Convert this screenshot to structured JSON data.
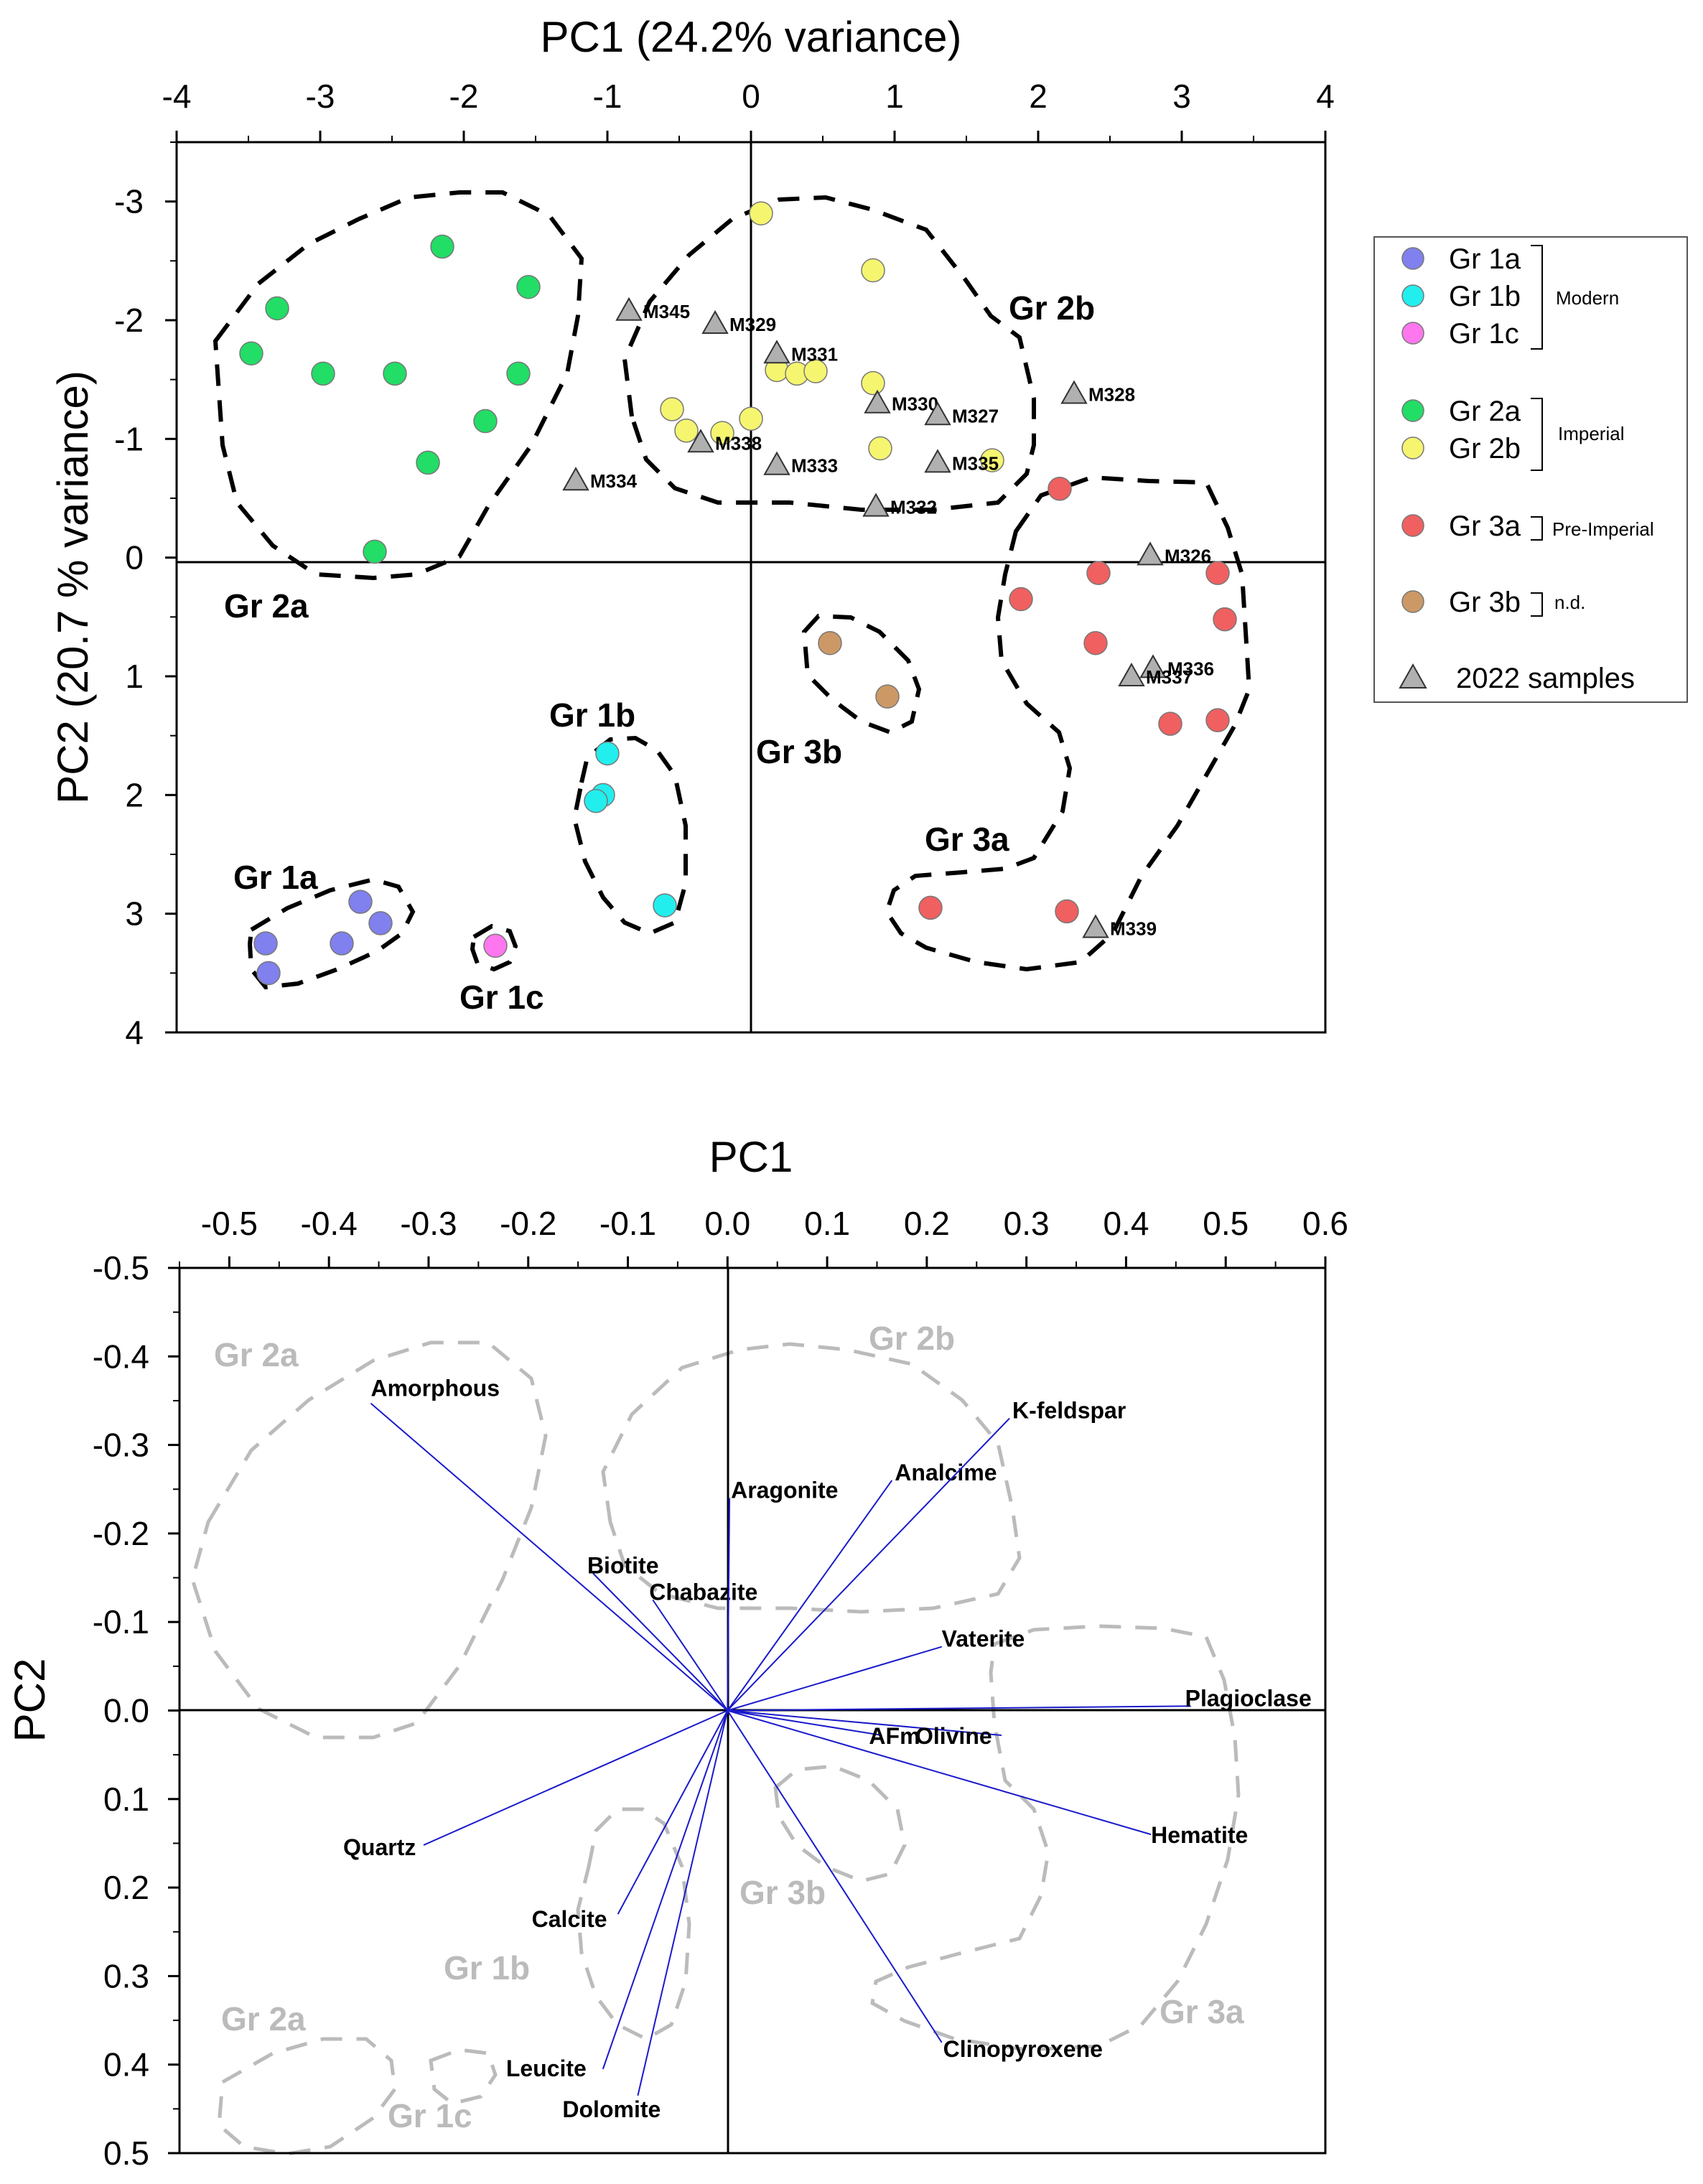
{
  "chart_data": [
    {
      "type": "scatter",
      "title": "",
      "xlabel": "PC1 (24.2% variance)",
      "ylabel": "PC2 (20.7 % variance)",
      "xlim": [
        -4,
        4
      ],
      "ylim": [
        -3.5,
        4
      ],
      "y_inverted": true,
      "x_ticks": [
        "-4",
        "-3",
        "-2",
        "-1",
        "0",
        "1",
        "2",
        "3",
        "4"
      ],
      "y_ticks": [
        "-3",
        "-2",
        "-1",
        "0",
        "1",
        "2",
        "3",
        "4"
      ],
      "series": [
        {
          "name": "Gr 1a",
          "color": "#8080ee",
          "points": [
            [
              -3.38,
              3.25
            ],
            [
              -3.36,
              3.5
            ],
            [
              -2.85,
              3.25
            ],
            [
              -2.72,
              2.9
            ],
            [
              -2.58,
              3.08
            ]
          ]
        },
        {
          "name": "Gr 1b",
          "color": "#22eeee",
          "points": [
            [
              -1.0,
              1.65
            ],
            [
              -1.03,
              2.0
            ],
            [
              -1.08,
              2.05
            ],
            [
              -0.6,
              2.93
            ]
          ]
        },
        {
          "name": "Gr 1c",
          "color": "#ff77ee",
          "points": [
            [
              -1.78,
              3.27
            ]
          ]
        },
        {
          "name": "Gr 2a",
          "color": "#22dd66",
          "points": [
            [
              -2.15,
              -2.62
            ],
            [
              -1.55,
              -2.28
            ],
            [
              -3.3,
              -2.1
            ],
            [
              -3.48,
              -1.72
            ],
            [
              -2.98,
              -1.55
            ],
            [
              -2.48,
              -1.55
            ],
            [
              -1.62,
              -1.55
            ],
            [
              -1.85,
              -1.15
            ],
            [
              -2.25,
              -0.8
            ],
            [
              -2.62,
              -0.05
            ]
          ]
        },
        {
          "name": "Gr 2b",
          "color": "#f5f570",
          "points": [
            [
              0.07,
              -2.9
            ],
            [
              0.85,
              -2.42
            ],
            [
              0.18,
              -1.58
            ],
            [
              0.32,
              -1.55
            ],
            [
              0.45,
              -1.57
            ],
            [
              0.85,
              -1.47
            ],
            [
              -0.55,
              -1.25
            ],
            [
              -0.45,
              -1.07
            ],
            [
              -0.2,
              -1.05
            ],
            [
              0.0,
              -1.17
            ],
            [
              0.9,
              -0.92
            ],
            [
              1.68,
              -0.82
            ]
          ]
        },
        {
          "name": "Gr 3a",
          "color": "#f06060",
          "points": [
            [
              2.15,
              -0.58
            ],
            [
              2.42,
              0.13
            ],
            [
              3.25,
              0.13
            ],
            [
              1.88,
              0.35
            ],
            [
              3.3,
              0.52
            ],
            [
              2.4,
              0.72
            ],
            [
              2.92,
              1.4
            ],
            [
              3.25,
              1.37
            ],
            [
              1.25,
              2.95
            ],
            [
              2.2,
              2.98
            ]
          ]
        },
        {
          "name": "Gr 3b",
          "color": "#cc9966",
          "points": [
            [
              0.55,
              0.72
            ],
            [
              0.95,
              1.17
            ]
          ]
        },
        {
          "name": "2022 samples",
          "color": "#b0b0b0",
          "marker": "triangle",
          "points": [
            [
              -0.85,
              -2.08
            ],
            [
              -0.25,
              -1.97
            ],
            [
              0.18,
              -1.72
            ],
            [
              0.88,
              -1.3
            ],
            [
              1.3,
              -1.2
            ],
            [
              2.25,
              -1.38
            ],
            [
              -0.35,
              -0.97
            ],
            [
              0.18,
              -0.78
            ],
            [
              1.3,
              -0.8
            ],
            [
              0.87,
              -0.43
            ],
            [
              -1.22,
              -0.65
            ],
            [
              2.78,
              -0.02
            ],
            [
              2.8,
              0.93
            ],
            [
              2.65,
              1.0
            ],
            [
              2.4,
              3.12
            ]
          ],
          "labels": [
            "M345",
            "M329",
            "M331",
            "M330",
            "M327",
            "M328",
            "M338",
            "M333",
            "M335",
            "M332",
            "M334",
            "M326",
            "M336",
            "M337",
            "M339"
          ]
        }
      ],
      "group_labels": [
        "Gr 2a",
        "Gr 2b",
        "Gr 1a",
        "Gr 1b",
        "Gr 1c",
        "Gr 3a",
        "Gr 3b"
      ],
      "legend": {
        "entries": [
          "Gr 1a",
          "Gr 1b",
          "Gr 1c",
          "Gr 2a",
          "Gr 2b",
          "Gr 3a",
          "Gr 3b",
          "2022 samples"
        ],
        "bracket_labels": [
          "Modern",
          "Imperial",
          "Pre-Imperial",
          "n.d."
        ],
        "placement": "right"
      }
    },
    {
      "type": "biplot",
      "title": "",
      "xlabel": "PC1",
      "ylabel": "PC2",
      "xlim": [
        -0.55,
        0.6
      ],
      "ylim": [
        -0.5,
        0.5
      ],
      "y_inverted": true,
      "x_ticks": [
        "-0.5",
        "-0.4",
        "-0.3",
        "-0.2",
        "-0.1",
        "0.0",
        "0.1",
        "0.2",
        "0.3",
        "0.4",
        "0.5",
        "0.6"
      ],
      "y_ticks": [
        "-0.5",
        "-0.4",
        "-0.3",
        "-0.2",
        "-0.1",
        "0.0",
        "0.1",
        "0.2",
        "0.3",
        "0.4",
        "0.5"
      ],
      "vectors": [
        {
          "label": "Amorphous",
          "x": -0.358,
          "y": -0.347
        },
        {
          "label": "Biotite",
          "x": -0.135,
          "y": -0.155
        },
        {
          "label": "Chabazite",
          "x": -0.075,
          "y": -0.125
        },
        {
          "label": "Aragonite",
          "x": 0.002,
          "y": -0.24
        },
        {
          "label": "Analcime",
          "x": 0.165,
          "y": -0.26
        },
        {
          "label": "K-feldspar",
          "x": 0.283,
          "y": -0.33
        },
        {
          "label": "Vaterite",
          "x": 0.215,
          "y": -0.072
        },
        {
          "label": "Plagioclase",
          "x": 0.465,
          "y": -0.005
        },
        {
          "label": "AFm",
          "x": 0.155,
          "y": 0.028
        },
        {
          "label": "Olivine",
          "x": 0.275,
          "y": 0.028
        },
        {
          "label": "Hematite",
          "x": 0.425,
          "y": 0.14
        },
        {
          "label": "Quartz",
          "x": -0.305,
          "y": 0.152
        },
        {
          "label": "Calcite",
          "x": -0.11,
          "y": 0.23
        },
        {
          "label": "Leucite",
          "x": -0.125,
          "y": 0.405
        },
        {
          "label": "Dolomite",
          "x": -0.09,
          "y": 0.435
        },
        {
          "label": "Clinopyroxene",
          "x": 0.215,
          "y": 0.375
        }
      ],
      "group_labels": [
        "Gr 2a",
        "Gr 2b",
        "Gr 3b",
        "Gr 1b",
        "Gr 3a",
        "Gr 2a",
        "Gr 1c"
      ]
    }
  ]
}
